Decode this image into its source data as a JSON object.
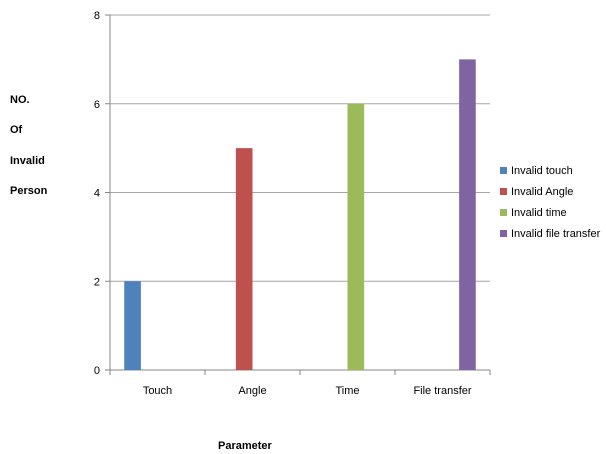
{
  "chart_data": {
    "type": "bar",
    "categories": [
      "Touch",
      "Angle",
      "Time",
      "File transfer"
    ],
    "series": [
      {
        "name": "Invalid touch",
        "values": [
          2,
          0,
          0,
          0
        ],
        "color": "#4F81BD"
      },
      {
        "name": "Invalid Angle",
        "values": [
          0,
          5,
          0,
          0
        ],
        "color": "#C0504D"
      },
      {
        "name": "Invalid time",
        "values": [
          0,
          0,
          6,
          0
        ],
        "color": "#9BBB59"
      },
      {
        "name": "Invalid file transfer",
        "values": [
          0,
          0,
          0,
          7
        ],
        "color": "#8064A2"
      }
    ],
    "ylim": [
      0,
      8
    ],
    "yticks": [
      0,
      2,
      4,
      6,
      8
    ],
    "ylabel_lines": [
      "NO.",
      "Of",
      "Invalid",
      "Person"
    ],
    "xlabel": "Parameter",
    "grid": true,
    "legend_position": "right"
  }
}
